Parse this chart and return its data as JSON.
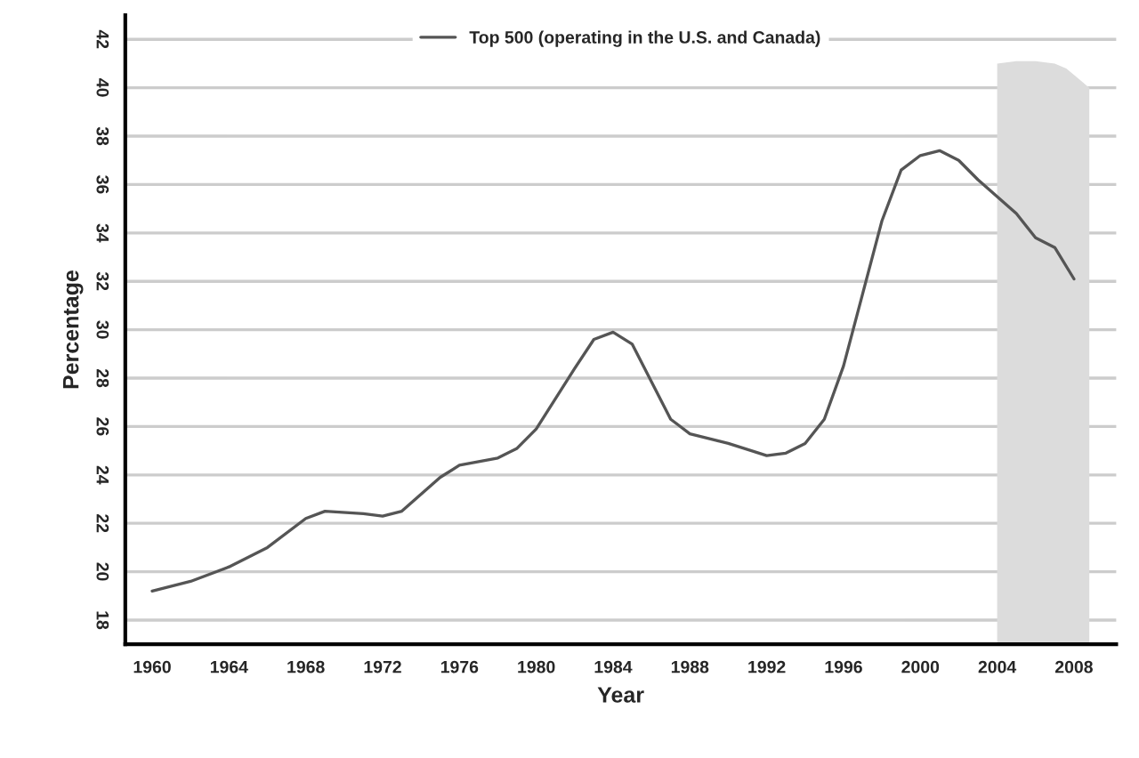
{
  "chart_data": {
    "type": "line",
    "xlabel": "Year",
    "ylabel": "Percentage",
    "series": [
      {
        "type": "area",
        "color": "#dcdcdc",
        "x": [
          2004,
          2005,
          2006,
          2007,
          2007.6,
          2008.2,
          2008.8
        ],
        "values": [
          41.0,
          41.1,
          41.1,
          41.0,
          40.8,
          40.4,
          40.0
        ]
      },
      {
        "name": "Top 500 (operating in the U.S. and Canada)",
        "color": "#555555",
        "x": [
          1960,
          1962,
          1964,
          1966,
          1968,
          1969,
          1971,
          1972,
          1973,
          1975,
          1976,
          1978,
          1979,
          1980,
          1982,
          1983,
          1984,
          1985,
          1987,
          1988,
          1990,
          1992,
          1993,
          1994,
          1995,
          1996,
          1997,
          1998,
          1999,
          2000,
          2001,
          2002,
          2003,
          2004,
          2005,
          2006,
          2007,
          2008
        ],
        "values": [
          19.2,
          19.6,
          20.2,
          21.0,
          22.2,
          22.5,
          22.4,
          22.3,
          22.5,
          23.9,
          24.4,
          24.7,
          25.1,
          25.9,
          28.4,
          29.6,
          29.9,
          29.4,
          26.3,
          25.7,
          25.3,
          24.8,
          24.9,
          25.3,
          26.3,
          28.5,
          31.5,
          34.5,
          36.6,
          37.2,
          37.4,
          37.0,
          36.2,
          35.5,
          34.8,
          33.8,
          33.4,
          32.1
        ]
      }
    ],
    "xlim": [
      1958.6,
      2010.2
    ],
    "ylim": [
      17,
      43
    ],
    "xticks": [
      1960,
      1964,
      1968,
      1972,
      1976,
      1980,
      1984,
      1988,
      1992,
      1996,
      2000,
      2004,
      2008
    ],
    "yticks": [
      18,
      20,
      22,
      24,
      26,
      28,
      30,
      32,
      34,
      36,
      38,
      40,
      42
    ],
    "grid": "y",
    "legend": "top",
    "marker": "none",
    "line_style": "solid"
  }
}
